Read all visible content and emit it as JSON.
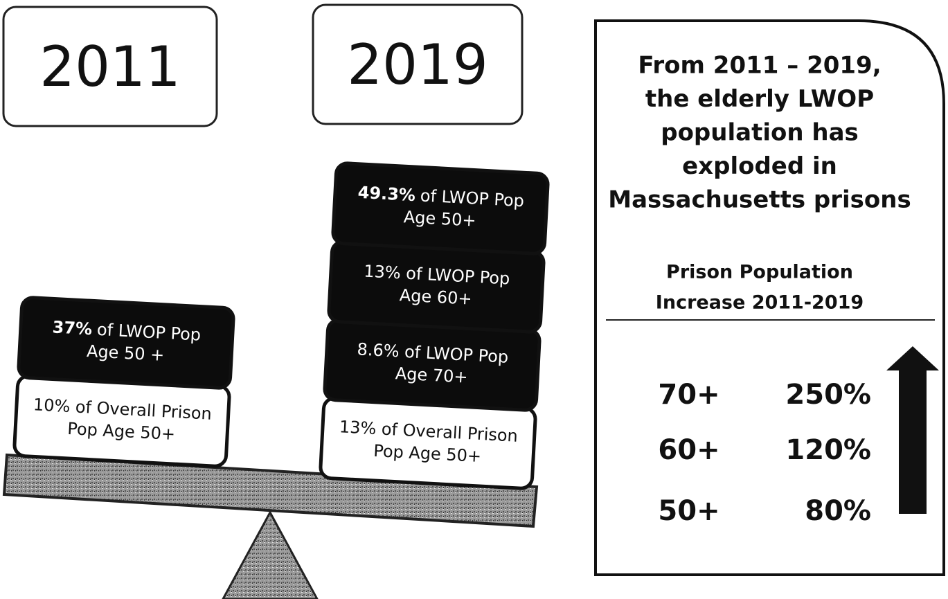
{
  "years": [
    "2011",
    "2019"
  ],
  "stacks": [
    {
      "blocks": [
        {
          "style": "white",
          "line1": "10% of Overall Prison",
          "line2": "Pop Age 50+"
        },
        {
          "style": "black",
          "highlight": "37%",
          "line1": "of LWOP Pop",
          "line2": "Age 50 +"
        }
      ]
    },
    {
      "blocks": [
        {
          "style": "white",
          "line1": "13% of Overall Prison",
          "line2": "Pop Age 50+"
        },
        {
          "style": "black",
          "line1": "8.6% of LWOP Pop",
          "line2": "Age 70+"
        },
        {
          "style": "black",
          "line1": "13% of LWOP Pop",
          "line2": "Age 60+"
        },
        {
          "style": "black",
          "highlight": "49.3%",
          "line1": "of LWOP Pop",
          "line2": "Age 50+"
        }
      ]
    }
  ],
  "panel": {
    "heading": [
      "From 2011 – 2019,",
      "the elderly LWOP",
      "population has",
      "exploded in",
      "Massachusetts prisons"
    ],
    "subheading": [
      "Prison Population",
      "Increase 2011-2019"
    ],
    "rows": [
      {
        "label": "70+",
        "value": "250%"
      },
      {
        "label": "60+",
        "value": "120%"
      },
      {
        "label": "50+",
        "value": "80%"
      }
    ]
  }
}
